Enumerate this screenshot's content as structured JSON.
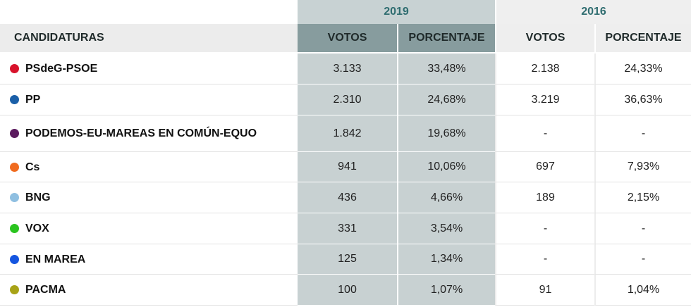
{
  "years": {
    "y2019": "2019",
    "y2016": "2016"
  },
  "headers": {
    "name": "CANDIDATURAS",
    "votes_2019": "VOTOS",
    "pct_2019": "PORCENTAJE",
    "votes_2016": "VOTOS",
    "pct_2016": "PORCENTAJE"
  },
  "rows": [
    {
      "name": "PSdeG-PSOE",
      "color": "#d8122b",
      "v2019": "3.133",
      "p2019": "33,48%",
      "v2016": "2.138",
      "p2016": "24,33%"
    },
    {
      "name": "PP",
      "color": "#1a5fa8",
      "v2019": "2.310",
      "p2019": "24,68%",
      "v2016": "3.219",
      "p2016": "36,63%"
    },
    {
      "name": "PODEMOS-EU-MAREAS EN COMÚN-EQUO",
      "color": "#5b1a5e",
      "v2019": "1.842",
      "p2019": "19,68%",
      "v2016": "-",
      "p2016": "-"
    },
    {
      "name": "Cs",
      "color": "#f06b1f",
      "v2019": "941",
      "p2019": "10,06%",
      "v2016": "697",
      "p2016": "7,93%"
    },
    {
      "name": "BNG",
      "color": "#8fbfe1",
      "v2019": "436",
      "p2019": "4,66%",
      "v2016": "189",
      "p2016": "2,15%"
    },
    {
      "name": "VOX",
      "color": "#2bc41f",
      "v2019": "331",
      "p2019": "3,54%",
      "v2016": "-",
      "p2016": "-"
    },
    {
      "name": "EN MAREA",
      "color": "#1555e0",
      "v2019": "125",
      "p2019": "1,34%",
      "v2016": "-",
      "p2016": "-"
    },
    {
      "name": "PACMA",
      "color": "#a8a317",
      "v2019": "100",
      "p2019": "1,07%",
      "v2016": "91",
      "p2016": "1,04%"
    }
  ]
}
